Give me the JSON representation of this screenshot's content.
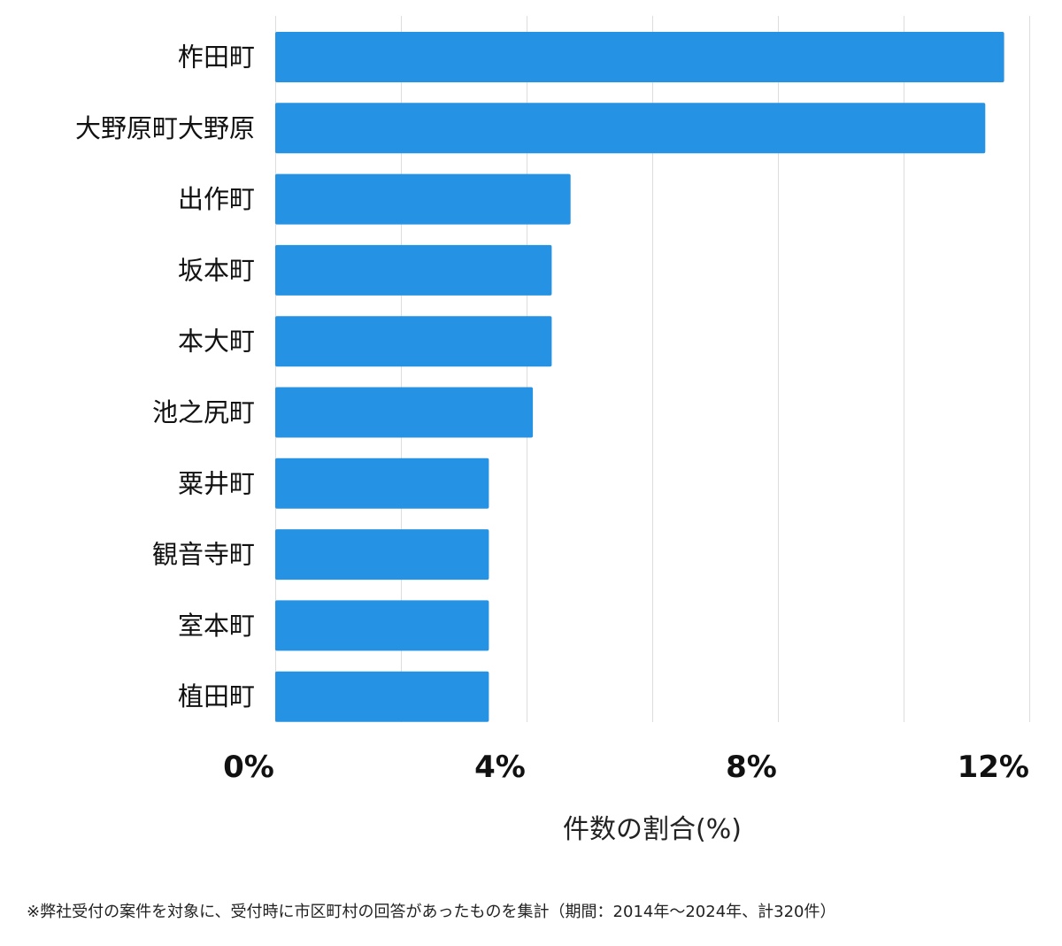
{
  "chart_data": {
    "type": "bar",
    "orientation": "horizontal",
    "categories": [
      "柞田町",
      "大野原町大野原",
      "出作町",
      "坂本町",
      "本大町",
      "池之尻町",
      "粟井町",
      "観音寺町",
      "室本町",
      "植田町"
    ],
    "values": [
      11.6,
      11.3,
      4.7,
      4.4,
      4.4,
      4.1,
      3.4,
      3.4,
      3.4,
      3.4
    ],
    "xlabel": "件数の割合(%)",
    "ylabel": "",
    "xlim": [
      0,
      12
    ],
    "xticks": [
      0,
      4,
      8,
      12
    ],
    "xtick_labels": [
      "0%",
      "4%",
      "8%",
      "12%"
    ],
    "grid": true,
    "bar_color": "#2592e3",
    "grid_color": "#dddddd"
  },
  "footnote": "※弊社受付の案件を対象に、受付時に市区町村の回答があったものを集計（期間：2014年〜2024年、計320件）"
}
